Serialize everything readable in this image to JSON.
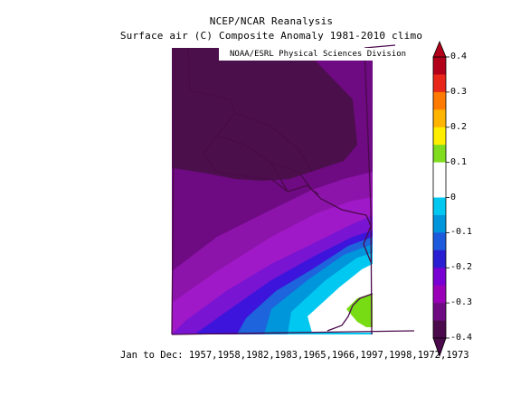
{
  "titles": {
    "line1": "NCEP/NCAR Reanalysis",
    "line2": "Surface air (C) Composite Anomaly 1981-2010 climo"
  },
  "credit": "NOAA/ESRL Physical Sciences Division",
  "footer": "Jan to Dec: 1957,1958,1982,1983,1965,1966,1997,1998,1972,1973",
  "colorbar": {
    "levels": [
      "0.4",
      "0.3",
      "0.2",
      "0.1",
      "0",
      "-0.1",
      "-0.2",
      "-0.3",
      "-0.4"
    ],
    "colors": [
      "#b3001a",
      "#e8261a",
      "#ff7a00",
      "#ffb400",
      "#ffee00",
      "#7fdc1f",
      "#ffffff",
      "#ffffff",
      "#00c8f0",
      "#0096dc",
      "#1e5adc",
      "#2a1ed2",
      "#7800d2",
      "#9a00b8",
      "#6e0a82",
      "#4b0a4b"
    ]
  },
  "map_colors": {
    "darkest": "#4b0f4b",
    "dark_purple": "#6e0a82",
    "purple": "#8c14aa",
    "magenta": "#a019c8",
    "violet": "#7814d2",
    "indigo": "#3c14dc",
    "blue": "#1e64dc",
    "sky": "#0096dc",
    "cyan": "#00c8f0",
    "white": "#ffffff",
    "green": "#78dc14"
  }
}
